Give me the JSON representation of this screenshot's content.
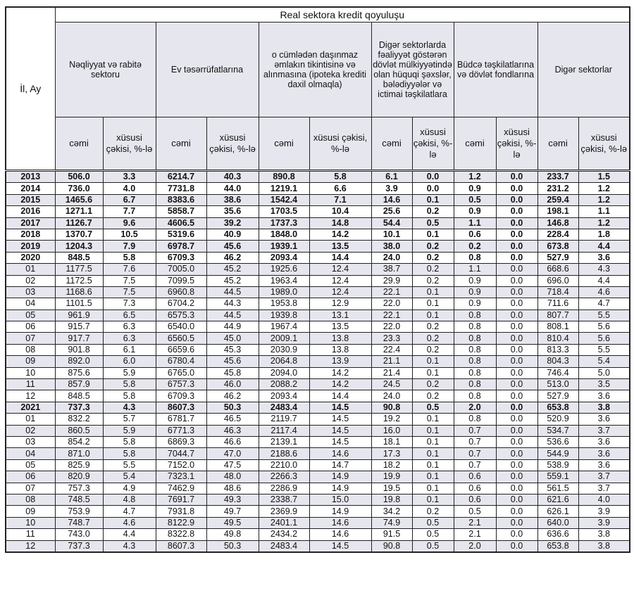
{
  "header": {
    "row_label": "İl, Ay",
    "title": "Real sektora kredit qoyuluşu",
    "groups": [
      "Nəqliyyat və rabitə sektoru",
      "Ev təsərrüfatlarına",
      "o cümlədən daşınmaz əmlakın tikintisinə və alınmasına (ipoteka krediti daxil olmaqla)",
      "Digər sektorlarda fəaliyyət göstərən dövlət mülkiyyətində olan hüquqi şəxslər, bələdiyyələr və ictimai təşkilatlara",
      "Büdcə təşkilatlarına və dövlət fondlarına",
      "Digər sektorlar"
    ],
    "sub_total": "cəmi",
    "sub_share": "xüsusi çəkisi, %-lə"
  },
  "rows": [
    {
      "label": "2013",
      "bold": true,
      "values": [
        "506.0",
        "3.3",
        "6214.7",
        "40.3",
        "890.8",
        "5.8",
        "6.1",
        "0.0",
        "1.2",
        "0.0",
        "233.7",
        "1.5"
      ]
    },
    {
      "label": "2014",
      "bold": true,
      "values": [
        "736.0",
        "4.0",
        "7731.8",
        "44.0",
        "1219.1",
        "6.6",
        "3.9",
        "0.0",
        "0.9",
        "0.0",
        "231.2",
        "1.2"
      ]
    },
    {
      "label": "2015",
      "bold": true,
      "values": [
        "1465.6",
        "6.7",
        "8383.6",
        "38.6",
        "1542.4",
        "7.1",
        "14.6",
        "0.1",
        "0.5",
        "0.0",
        "259.4",
        "1.2"
      ]
    },
    {
      "label": "2016",
      "bold": true,
      "values": [
        "1271.1",
        "7.7",
        "5858.7",
        "35.6",
        "1703.5",
        "10.4",
        "25.6",
        "0.2",
        "0.9",
        "0.0",
        "198.1",
        "1.1"
      ]
    },
    {
      "label": "2017",
      "bold": true,
      "values": [
        "1126.7",
        "9.6",
        "4606.5",
        "39.2",
        "1737.3",
        "14.8",
        "54.4",
        "0.5",
        "1.1",
        "0.0",
        "146.8",
        "1.2"
      ]
    },
    {
      "label": "2018",
      "bold": true,
      "values": [
        "1370.7",
        "10.5",
        "5319.6",
        "40.9",
        "1848.0",
        "14.2",
        "10.1",
        "0.1",
        "0.6",
        "0.0",
        "228.4",
        "1.8"
      ]
    },
    {
      "label": "2019",
      "bold": true,
      "values": [
        "1204.3",
        "7.9",
        "6978.7",
        "45.6",
        "1939.1",
        "13.5",
        "38.0",
        "0.2",
        "0.2",
        "0.0",
        "673.8",
        "4.4"
      ]
    },
    {
      "label": "2020",
      "bold": true,
      "values": [
        "848.5",
        "5.8",
        "6709.3",
        "46.2",
        "2093.4",
        "14.4",
        "24.0",
        "0.2",
        "0.8",
        "0.0",
        "527.9",
        "3.6"
      ]
    },
    {
      "label": "01",
      "values": [
        "1177.5",
        "7.6",
        "7005.0",
        "45.2",
        "1925.6",
        "12.4",
        "38.7",
        "0.2",
        "1.1",
        "0.0",
        "668.6",
        "4.3"
      ]
    },
    {
      "label": "02",
      "values": [
        "1172.5",
        "7.5",
        "7099.5",
        "45.2",
        "1963.4",
        "12.4",
        "29.9",
        "0.2",
        "0.9",
        "0.0",
        "696.0",
        "4.4"
      ]
    },
    {
      "label": "03",
      "values": [
        "1168.6",
        "7.5",
        "6960.8",
        "44.5",
        "1989.0",
        "12.4",
        "22.1",
        "0.1",
        "0.9",
        "0.0",
        "718.4",
        "4.6"
      ]
    },
    {
      "label": "04",
      "values": [
        "1101.5",
        "7.3",
        "6704.2",
        "44.3",
        "1953.8",
        "12.9",
        "22.0",
        "0.1",
        "0.9",
        "0.0",
        "711.6",
        "4.7"
      ]
    },
    {
      "label": "05",
      "values": [
        "961.9",
        "6.5",
        "6575.3",
        "44.5",
        "1939.8",
        "13.1",
        "22.1",
        "0.1",
        "0.8",
        "0.0",
        "807.7",
        "5.5"
      ]
    },
    {
      "label": "06",
      "values": [
        "915.7",
        "6.3",
        "6540.0",
        "44.9",
        "1967.4",
        "13.5",
        "22.0",
        "0.2",
        "0.8",
        "0.0",
        "808.1",
        "5.6"
      ]
    },
    {
      "label": "07",
      "values": [
        "917.7",
        "6.3",
        "6560.5",
        "45.0",
        "2009.1",
        "13.8",
        "23.3",
        "0.2",
        "0.8",
        "0.0",
        "810.4",
        "5.6"
      ]
    },
    {
      "label": "08",
      "values": [
        "901.8",
        "6.1",
        "6659.6",
        "45.3",
        "2030.9",
        "13.8",
        "22.4",
        "0.2",
        "0.8",
        "0.0",
        "813.3",
        "5.5"
      ]
    },
    {
      "label": "09",
      "values": [
        "892.0",
        "6.0",
        "6780.4",
        "45.6",
        "2064.8",
        "13.9",
        "21.1",
        "0.1",
        "0.8",
        "0.0",
        "804.3",
        "5.4"
      ]
    },
    {
      "label": "10",
      "values": [
        "875.6",
        "5.9",
        "6765.0",
        "45.8",
        "2094.0",
        "14.2",
        "21.4",
        "0.1",
        "0.8",
        "0.0",
        "746.4",
        "5.0"
      ]
    },
    {
      "label": "11",
      "values": [
        "857.9",
        "5.8",
        "6757.3",
        "46.0",
        "2088.2",
        "14.2",
        "24.5",
        "0.2",
        "0.8",
        "0.0",
        "513.0",
        "3.5"
      ]
    },
    {
      "label": "12",
      "values": [
        "848.5",
        "5.8",
        "6709.3",
        "46.2",
        "2093.4",
        "14.4",
        "24.0",
        "0.2",
        "0.8",
        "0.0",
        "527.9",
        "3.6"
      ]
    },
    {
      "label": "2021",
      "bold": true,
      "values": [
        "737.3",
        "4.3",
        "8607.3",
        "50.3",
        "2483.4",
        "14.5",
        "90.8",
        "0.5",
        "2.0",
        "0.0",
        "653.8",
        "3.8"
      ]
    },
    {
      "label": "01",
      "values": [
        "832.2",
        "5.7",
        "6781.7",
        "46.5",
        "2119.7",
        "14.5",
        "19.2",
        "0.1",
        "0.8",
        "0.0",
        "520.9",
        "3.6"
      ]
    },
    {
      "label": "02",
      "values": [
        "860.5",
        "5.9",
        "6771.3",
        "46.3",
        "2117.4",
        "14.5",
        "16.0",
        "0.1",
        "0.7",
        "0.0",
        "534.7",
        "3.7"
      ]
    },
    {
      "label": "03",
      "values": [
        "854.2",
        "5.8",
        "6869.3",
        "46.6",
        "2139.1",
        "14.5",
        "18.1",
        "0.1",
        "0.7",
        "0.0",
        "536.6",
        "3.6"
      ]
    },
    {
      "label": "04",
      "values": [
        "871.0",
        "5.8",
        "7044.7",
        "47.0",
        "2188.6",
        "14.6",
        "17.3",
        "0.1",
        "0.7",
        "0.0",
        "544.9",
        "3.6"
      ]
    },
    {
      "label": "05",
      "values": [
        "825.9",
        "5.5",
        "7152.0",
        "47.5",
        "2210.0",
        "14.7",
        "18.2",
        "0.1",
        "0.7",
        "0.0",
        "538.9",
        "3.6"
      ]
    },
    {
      "label": "06",
      "values": [
        "820.9",
        "5.4",
        "7323.1",
        "48.0",
        "2266.3",
        "14.9",
        "19.9",
        "0.1",
        "0.6",
        "0.0",
        "559.1",
        "3.7"
      ]
    },
    {
      "label": "07",
      "values": [
        "757.3",
        "4.9",
        "7462.9",
        "48.6",
        "2286.9",
        "14.9",
        "19.5",
        "0.1",
        "0.6",
        "0.0",
        "561.5",
        "3.7"
      ]
    },
    {
      "label": "08",
      "values": [
        "748.5",
        "4.8",
        "7691.7",
        "49.3",
        "2338.7",
        "15.0",
        "19.8",
        "0.1",
        "0.6",
        "0.0",
        "621.6",
        "4.0"
      ]
    },
    {
      "label": "09",
      "values": [
        "753.9",
        "4.7",
        "7931.8",
        "49.7",
        "2369.9",
        "14.9",
        "34.2",
        "0.2",
        "0.5",
        "0.0",
        "626.1",
        "3.9"
      ]
    },
    {
      "label": "10",
      "values": [
        "748.7",
        "4.6",
        "8122.9",
        "49.5",
        "2401.1",
        "14.6",
        "74.9",
        "0.5",
        "2.1",
        "0.0",
        "640.0",
        "3.9"
      ]
    },
    {
      "label": "11",
      "values": [
        "743.0",
        "4.4",
        "8322.8",
        "49.8",
        "2434.2",
        "14.6",
        "91.5",
        "0.5",
        "2.1",
        "0.0",
        "636.6",
        "3.8"
      ]
    },
    {
      "label": "12",
      "values": [
        "737.3",
        "4.3",
        "8607.3",
        "50.3",
        "2483.4",
        "14.5",
        "90.8",
        "0.5",
        "2.0",
        "0.0",
        "653.8",
        "3.8"
      ]
    }
  ]
}
